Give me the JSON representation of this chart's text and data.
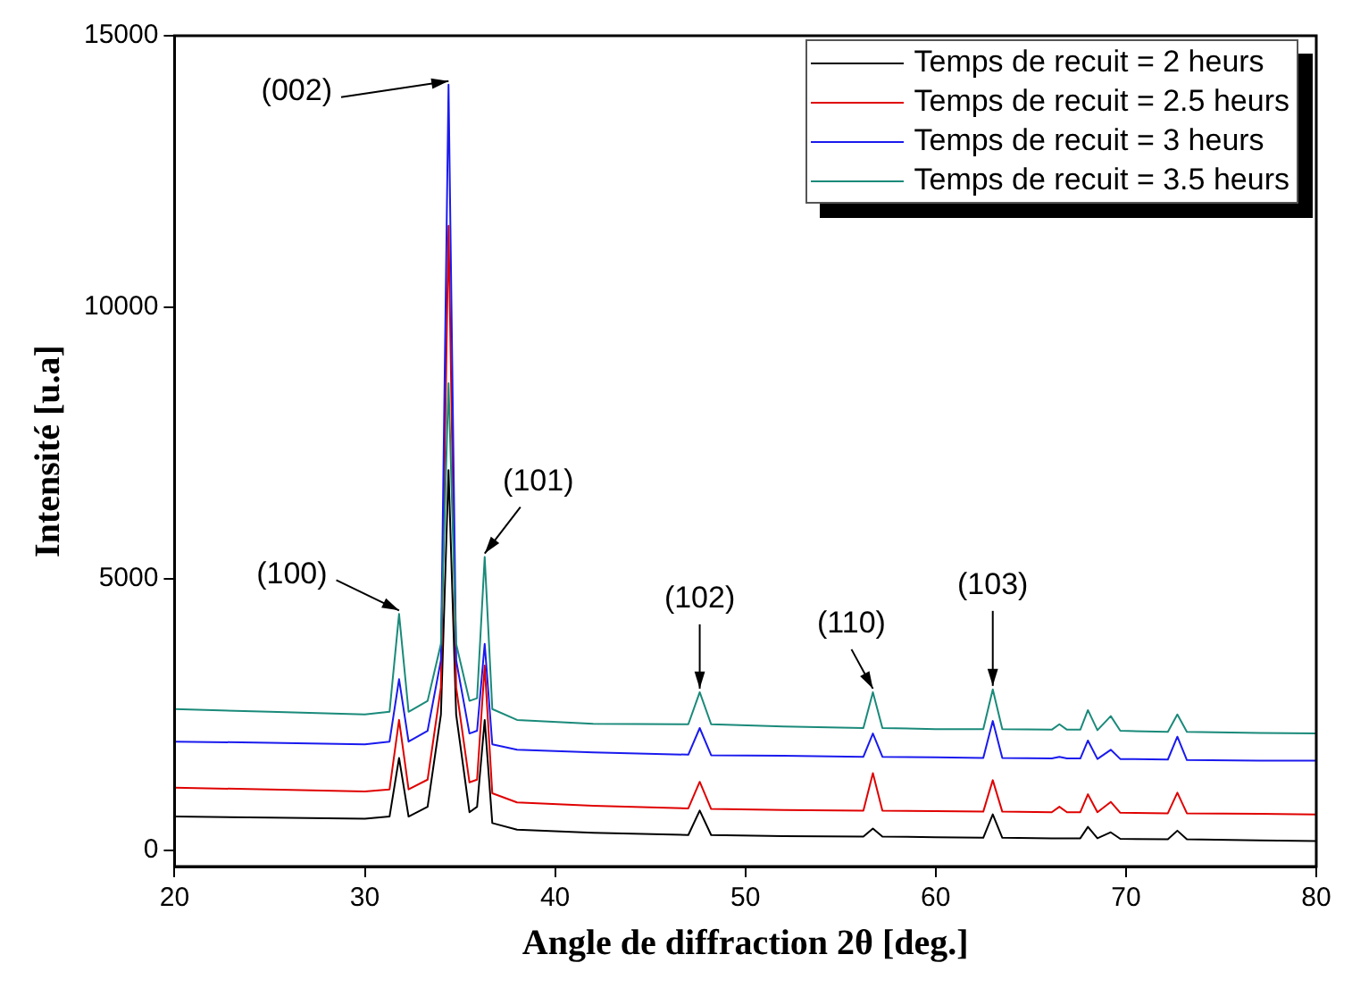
{
  "chart_data": {
    "type": "line",
    "xlabel": "Angle de diffraction 2θ [deg.]",
    "ylabel": "Intensité [u.a]",
    "x": [
      20,
      25,
      30,
      31.3,
      31.8,
      32.3,
      33.3,
      34.0,
      34.4,
      34.8,
      35.5,
      35.9,
      36.3,
      36.7,
      38,
      42,
      47.0,
      47.6,
      48.2,
      52,
      56.2,
      56.7,
      57.2,
      60,
      62.5,
      63.0,
      63.5,
      66.1,
      66.5,
      66.9,
      67.6,
      68.0,
      68.5,
      69.2,
      69.7,
      72.2,
      72.7,
      73.2,
      77,
      80
    ],
    "series": [
      {
        "name": "Temps de recuit = 2 heurs",
        "color": "#000000",
        "values": [
          620,
          600,
          580,
          620,
          1700,
          620,
          800,
          2500,
          7000,
          2500,
          700,
          800,
          2400,
          500,
          380,
          320,
          280,
          730,
          280,
          260,
          250,
          400,
          250,
          240,
          230,
          660,
          230,
          220,
          220,
          220,
          220,
          430,
          220,
          330,
          210,
          200,
          360,
          200,
          180,
          170
        ]
      },
      {
        "name": "Temps de recuit = 2.5 heurs",
        "color": "#e00000",
        "values": [
          1150,
          1120,
          1080,
          1120,
          2400,
          1120,
          1300,
          3000,
          11500,
          3000,
          1250,
          1300,
          3400,
          1050,
          880,
          820,
          770,
          1260,
          760,
          740,
          730,
          1420,
          730,
          720,
          710,
          1290,
          710,
          700,
          800,
          700,
          700,
          1030,
          700,
          890,
          690,
          680,
          1060,
          680,
          670,
          660
        ]
      },
      {
        "name": "Temps de recuit = 3 heurs",
        "color": "#1a1aee",
        "values": [
          2000,
          1980,
          1950,
          2000,
          3150,
          2000,
          2200,
          3500,
          14100,
          3500,
          2150,
          2200,
          3800,
          1950,
          1850,
          1800,
          1760,
          2250,
          1750,
          1740,
          1720,
          2150,
          1720,
          1710,
          1700,
          2380,
          1700,
          1690,
          1720,
          1690,
          1690,
          2020,
          1680,
          1850,
          1680,
          1670,
          2090,
          1660,
          1650,
          1650
        ]
      },
      {
        "name": "Temps de recuit = 3.5 heurs",
        "color": "#1a8a7a",
        "values": [
          2600,
          2550,
          2500,
          2550,
          4350,
          2550,
          2750,
          3800,
          8600,
          3800,
          2750,
          2800,
          5400,
          2600,
          2400,
          2330,
          2320,
          2910,
          2320,
          2280,
          2250,
          2910,
          2250,
          2230,
          2230,
          2960,
          2230,
          2220,
          2320,
          2220,
          2220,
          2580,
          2210,
          2470,
          2200,
          2180,
          2500,
          2180,
          2160,
          2150
        ]
      }
    ],
    "annotations": [
      {
        "text": "(100)",
        "x": 31.8,
        "y": 4350
      },
      {
        "text": "(002)",
        "x": 34.4,
        "y": 14100
      },
      {
        "text": "(101)",
        "x": 36.3,
        "y": 5400
      },
      {
        "text": "(102)",
        "x": 47.6,
        "y": 2910
      },
      {
        "text": "(110)",
        "x": 56.7,
        "y": 2910
      },
      {
        "text": "(103)",
        "x": 63.0,
        "y": 2960
      }
    ],
    "xlim": [
      20,
      80
    ],
    "xticks": [
      20,
      30,
      40,
      50,
      60,
      70,
      80
    ],
    "ylim": [
      -300,
      15000
    ],
    "yticks": [
      0,
      5000,
      10000,
      15000
    ],
    "grid": false,
    "legend": "top right",
    "marker": "none",
    "line_style": "solid"
  }
}
